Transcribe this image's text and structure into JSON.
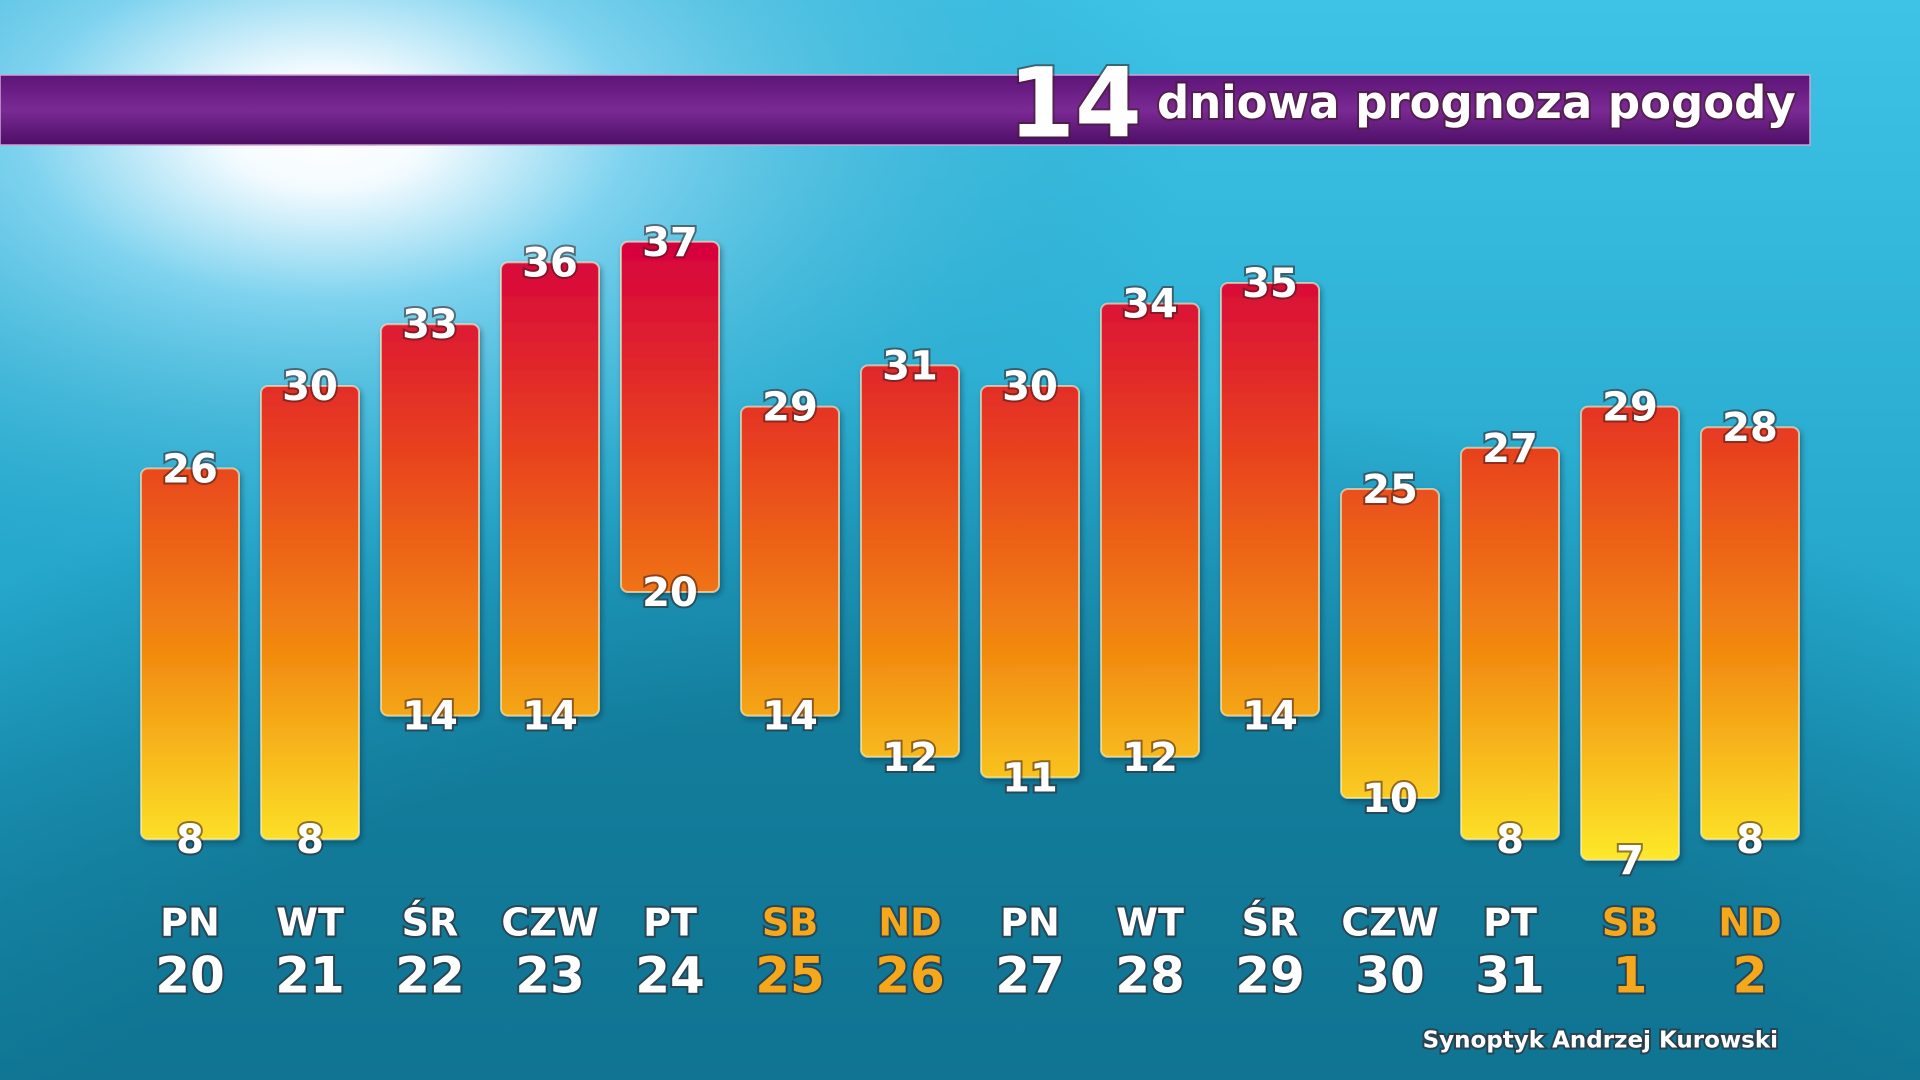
{
  "chart_data": {
    "type": "range-bar",
    "title_number": "14",
    "title": "dniowa prognoza pogody",
    "credit": "Synoptyk Andrzej Kurowski",
    "categories": [
      "PN",
      "WT",
      "ŚR",
      "CZW",
      "PT",
      "SB",
      "ND",
      "PN",
      "WT",
      "ŚR",
      "CZW",
      "PT",
      "SB",
      "ND"
    ],
    "dates": [
      "20",
      "21",
      "22",
      "23",
      "24",
      "25",
      "26",
      "27",
      "28",
      "29",
      "30",
      "31",
      "1",
      "2"
    ],
    "highs": [
      26,
      30,
      33,
      36,
      37,
      29,
      31,
      30,
      34,
      35,
      25,
      27,
      29,
      28
    ],
    "lows": [
      8,
      8,
      14,
      14,
      20,
      14,
      12,
      11,
      12,
      14,
      10,
      8,
      7,
      8
    ],
    "label_colors": [
      "#ffffff",
      "#ffffff",
      "#ffffff",
      "#ffffff",
      "#ffffff",
      "#f5a81c",
      "#f5a81c",
      "#ffffff",
      "#ffffff",
      "#ffffff",
      "#ffffff",
      "#ffffff",
      "#f5a81c",
      "#f5a81c"
    ],
    "gradient": [
      "#d6003f",
      "#e8401f",
      "#f28a10",
      "#fde92a"
    ],
    "ylim": [
      0,
      40
    ]
  }
}
